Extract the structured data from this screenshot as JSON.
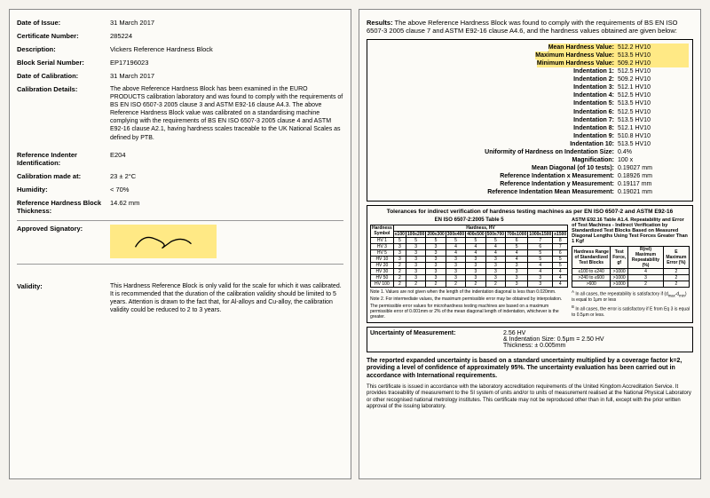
{
  "left": {
    "date_issue_label": "Date of Issue:",
    "date_issue": "31 March 2017",
    "cert_label": "Certificate Number:",
    "cert": "285224",
    "desc_label": "Description:",
    "desc": "Vickers Reference Hardness Block",
    "serial_label": "Block Serial Number:",
    "serial": "EP17196023",
    "calib_date_label": "Date of Calibration:",
    "calib_date": "31 March 2017",
    "details_label": "Calibration Details:",
    "details": "The above Reference Hardness Block has been examined in the EURO PRODUCTS calibration laboratory and was found to comply with the requirements of BS EN ISO 6507-3 2005 clause 3 and ASTM E92-16 clause A4.3. The above Reference Hardness Block value was calibrated on a standardising machine complying with the requirements of BS EN ISO 6507-3 2005 clause 4 and ASTM E92-16 clause A2.1, having hardness scales traceable to the UK National Scales as defined by PTB.",
    "indenter_label": "Reference Indenter Identification:",
    "indenter": "E204",
    "calib_at_label": "Calibration made at:",
    "calib_at": "23 ± 2°C",
    "humidity_label": "Humidity:",
    "humidity": "< 70%",
    "thickness_label": "Reference Hardness Block Thickness:",
    "thickness": "14.62 mm",
    "sig_label": "Approved Signatory:",
    "validity_label": "Validity:",
    "validity": "This Hardness Reference Block is only valid for the scale for which it was calibrated. It is recommended that the duration of the calibration validity should be limited to 5 years. Attention is drawn to the fact that, for Al-alloys and Cu-alloy, the calibration validity could be reduced to 2 to 3 years."
  },
  "right": {
    "results_label": "Results:",
    "results_text": "The above Reference Hardness Block was found to comply with the requirements of BS EN ISO 6507-3 2005 clause 7 and ASTM E92-16 clause A4.6, and the hardness values obtained are given below:",
    "mean_label": "Mean Hardness Value:",
    "mean": "512.2  HV10",
    "max_label": "Maximum Hardness Value:",
    "max": "513.5  HV10",
    "min_label": "Minimum Hardness Value:",
    "min": "509.2  HV10",
    "ind": [
      {
        "l": "Indentation 1:",
        "v": "512.5  HV10"
      },
      {
        "l": "Indentation 2:",
        "v": "509.2  HV10"
      },
      {
        "l": "Indentation 3:",
        "v": "512.1  HV10"
      },
      {
        "l": "Indentation 4:",
        "v": "512.5  HV10"
      },
      {
        "l": "Indentation 5:",
        "v": "513.5  HV10"
      },
      {
        "l": "Indentation 6:",
        "v": "512.5  HV10"
      },
      {
        "l": "Indentation 7:",
        "v": "513.5  HV10"
      },
      {
        "l": "Indentation 8:",
        "v": "512.1  HV10"
      },
      {
        "l": "Indentation 9:",
        "v": "510.8  HV10"
      },
      {
        "l": "Indentation 10:",
        "v": "513.5  HV10"
      }
    ],
    "uniformity_label": "Uniformity of Hardness on Indentation Size:",
    "uniformity": "0.4%",
    "mag_label": "Magnification:",
    "mag": "100 x",
    "diag_label": "Mean Diagonal (of 10 tests):",
    "diag": "0.19027 mm",
    "refx_label": "Reference Indentation x Measurement:",
    "refx": "0.18926 mm",
    "refy_label": "Reference Indentation y Measurement:",
    "refy": "0.19117 mm",
    "refmean_label": "Reference Indentation Mean Measurement:",
    "refmean": "0.19021 mm",
    "tol_title": "Tolerances for indirect verification of hardness testing machines as per EN ISO 6507-2 and ASTM E92-16",
    "tol_left_title": "EN ISO 6507-2:2005 Table 5",
    "tol_right_title": "ASTM E92.16 Table A1.4. Repeatability and Error of Test Machines - Indirect Verification by Standardized Test Blocks Based on Measured Diagonal Lengths Using Test Forces Greater Than 1 Kgf",
    "t5": {
      "head_hardness": "Hardness, HV",
      "head_symbol": "Hardness Symbol",
      "cols": [
        "≤100",
        "100≤200",
        "200≤300",
        "300≤400",
        "400≤500",
        "500≤700",
        "700≤1000",
        "1000≤1500",
        "≥1500"
      ],
      "rows": [
        {
          "s": "HV 1",
          "v": [
            "5",
            "5",
            "5",
            "5",
            "5",
            "5",
            "6",
            "7",
            "8"
          ]
        },
        {
          "s": "HV 3",
          "v": [
            "3",
            "3",
            "3",
            "4",
            "4",
            "4",
            "5",
            "6",
            "7"
          ]
        },
        {
          "s": "HV 5",
          "v": [
            "3",
            "3",
            "3",
            "4",
            "4",
            "4",
            "4",
            "5",
            "6"
          ]
        },
        {
          "s": "HV 10",
          "v": [
            "3",
            "3",
            "3",
            "3",
            "3",
            "3",
            "4",
            "5",
            "5"
          ]
        },
        {
          "s": "HV 20",
          "v": [
            "2",
            "3",
            "3",
            "3",
            "3",
            "3",
            "3",
            "4",
            "5"
          ]
        },
        {
          "s": "HV 30",
          "v": [
            "2",
            "3",
            "3",
            "3",
            "3",
            "3",
            "3",
            "4",
            "4"
          ]
        },
        {
          "s": "HV 50",
          "v": [
            "2",
            "3",
            "3",
            "3",
            "3",
            "3",
            "3",
            "3",
            "4"
          ]
        },
        {
          "s": "HV 100",
          "v": [
            "2",
            "2",
            "2",
            "2",
            "2",
            "2",
            "3",
            "3",
            "4"
          ]
        }
      ]
    },
    "note1": "Note 1. Values are not given when the length of the indentation diagonal is less than 0.020mm.",
    "note2": "Note 2. For intermediate values, the maximum permissible error may be obtained by interpolation.",
    "note3": "The permissible error values for microhardness testing machines are based on a maximum permissible error of 0.001mm or 2% of the mean diagonal length of indentation, whichever is the greater.",
    "astm": {
      "h1": "Hardness Range of Standardized Test Blocks",
      "h2": "Test Force, gf",
      "h3": "R(rel) Maximum Repeatability (%)",
      "h4": "E Maximum Error (%)",
      "rows": [
        {
          "a": "≤100 to ≤240",
          "b": ">1000",
          "c": "4",
          "d": "2"
        },
        {
          "a": ">240 to ≤600",
          "b": ">1000",
          "c": "3",
          "d": "2"
        },
        {
          "a": ">600",
          "b": ">1000",
          "c": "2",
          "d": "2"
        }
      ],
      "fn_a": "In all cases, the repeatability is satisfactory if",
      "fn_a2": "equal to 1μm or less",
      "fn_b": "In all cases, the error is satisfactory if E from Eq 3 is equal to 0.5μm or less."
    },
    "uom_label": "Uncertainty of Measurement:",
    "uom_1": "2.56  HV",
    "uom_2": "& Indentation Size: 0.5μm = 2.50 HV",
    "uom_3": "Thickness:  ± 0.005mm",
    "footer_bold": "The reported expanded uncertainty is based on a standard uncertainty multiplied by a coverage factor k=2, providing a level of confidence of approximately 95%. The uncertainty evaluation has been carried out in accordance with International requirements.",
    "footer_fine": "This certificate is issued in accordance with the laboratory accreditation requirements of the United Kingdom Accreditation Service. It provides traceability of measurement to the SI system of units and/or to units of measurement realised at the National Physical Laboratory or other recognised national metrology institutes. This certificate may not be reproduced other than in full, except with the prior written approval of the issuing laboratory."
  }
}
